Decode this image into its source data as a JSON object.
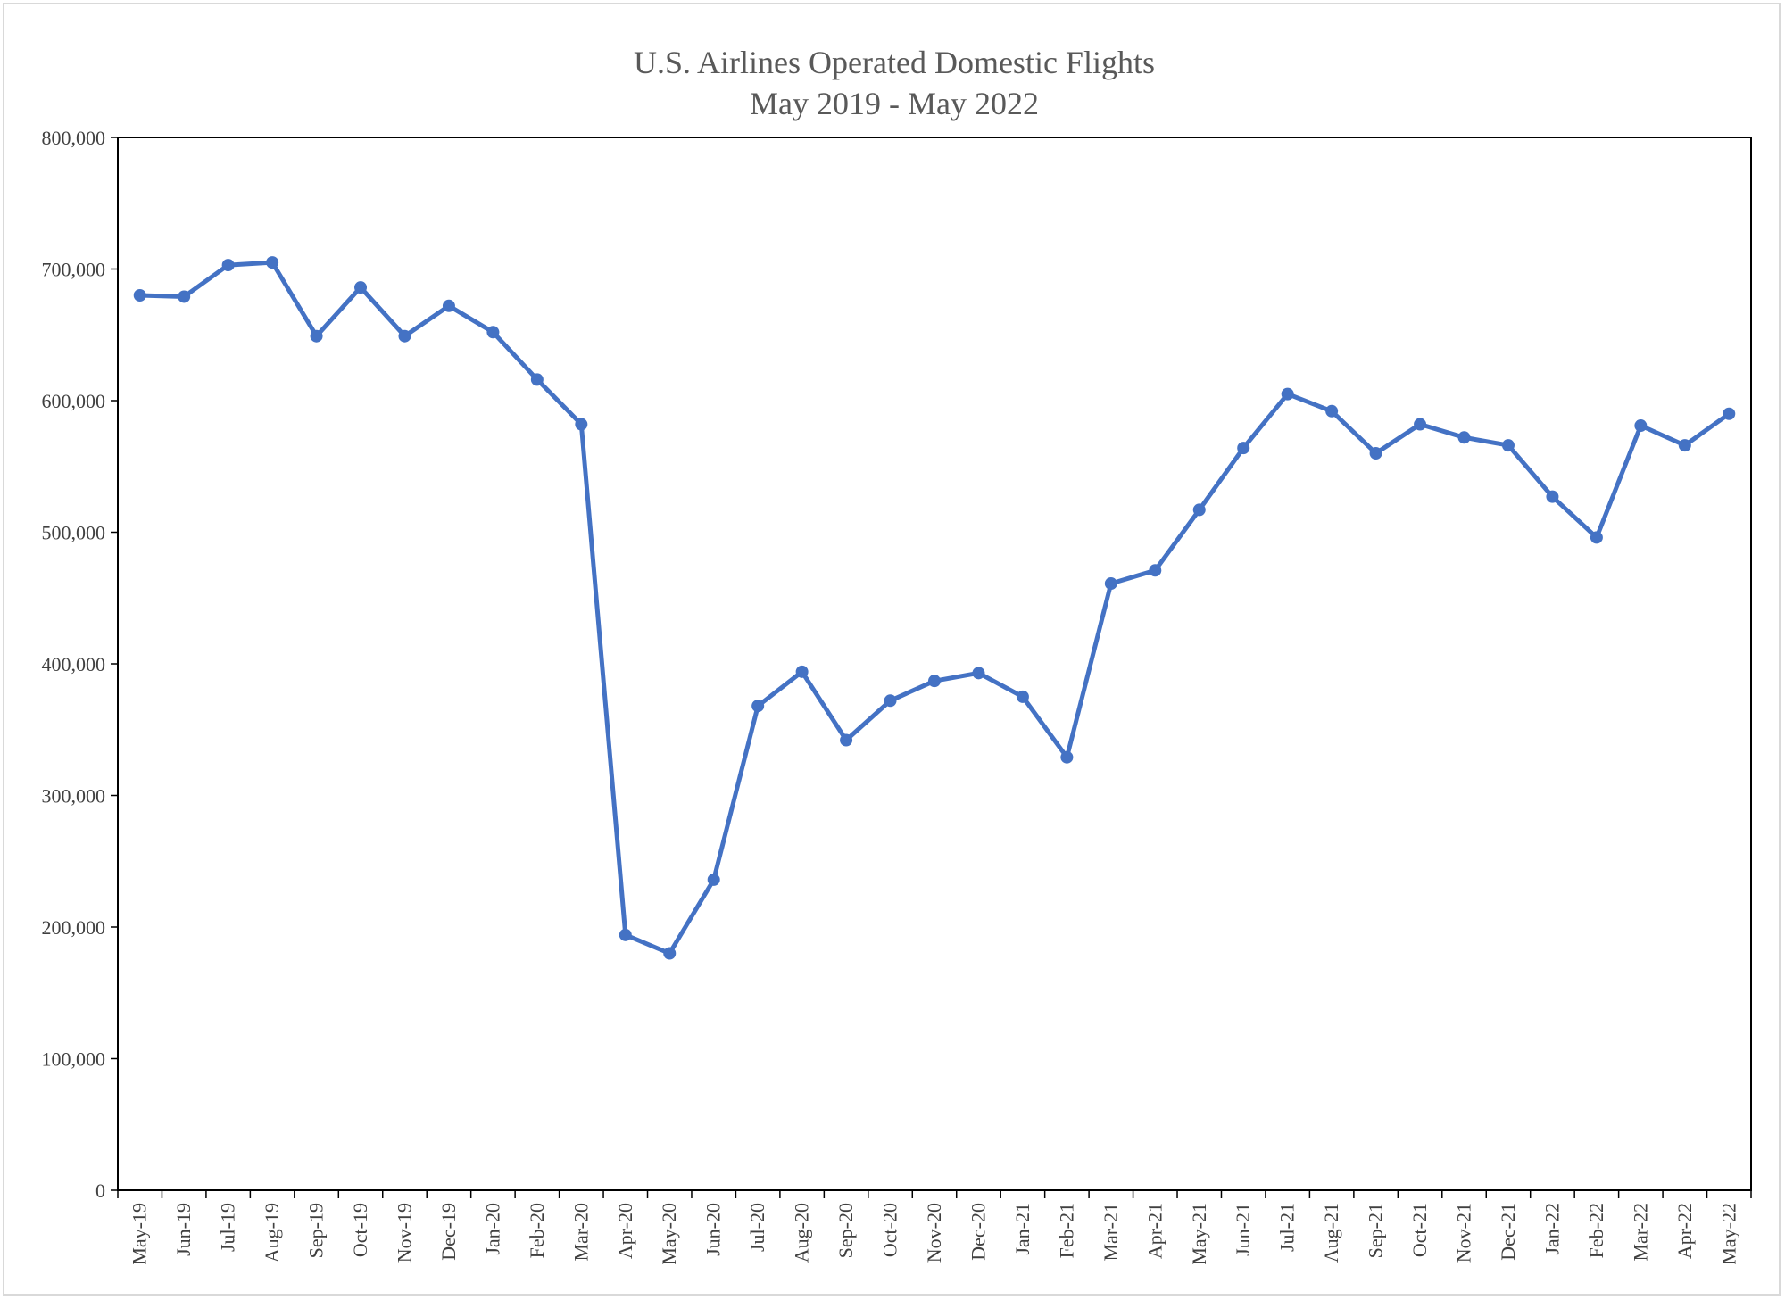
{
  "chart_data": {
    "type": "line",
    "title": "U.S. Airlines Operated Domestic Flights",
    "subtitle": "May 2019 - May 2022",
    "xlabel": "",
    "ylabel": "",
    "ylim": [
      0,
      800000
    ],
    "y_ticks": [
      0,
      100000,
      200000,
      300000,
      400000,
      500000,
      600000,
      700000,
      800000
    ],
    "y_tick_labels": [
      "0",
      "100,000",
      "200,000",
      "300,000",
      "400,000",
      "500,000",
      "600,000",
      "700,000",
      "800,000"
    ],
    "grid": false,
    "legend": "none",
    "line_color": "#4472C4",
    "categories": [
      "May-19",
      "Jun-19",
      "Jul-19",
      "Aug-19",
      "Sep-19",
      "Oct-19",
      "Nov-19",
      "Dec-19",
      "Jan-20",
      "Feb-20",
      "Mar-20",
      "Apr-20",
      "May-20",
      "Jun-20",
      "Jul-20",
      "Aug-20",
      "Sep-20",
      "Oct-20",
      "Nov-20",
      "Dec-20",
      "Jan-21",
      "Feb-21",
      "Mar-21",
      "Apr-21",
      "May-21",
      "Jun-21",
      "Jul-21",
      "Aug-21",
      "Sep-21",
      "Oct-21",
      "Nov-21",
      "Dec-21",
      "Jan-22",
      "Feb-22",
      "Mar-22",
      "Apr-22",
      "May-22"
    ],
    "series": [
      {
        "name": "Domestic Flights",
        "values": [
          680000,
          679000,
          703000,
          705000,
          649000,
          686000,
          649000,
          672000,
          652000,
          616000,
          582000,
          194000,
          180000,
          236000,
          368000,
          394000,
          342000,
          372000,
          387000,
          393000,
          375000,
          329000,
          461000,
          471000,
          517000,
          564000,
          605000,
          592000,
          560000,
          582000,
          572000,
          566000,
          527000,
          496000,
          581000,
          566000,
          590000
        ]
      }
    ]
  }
}
